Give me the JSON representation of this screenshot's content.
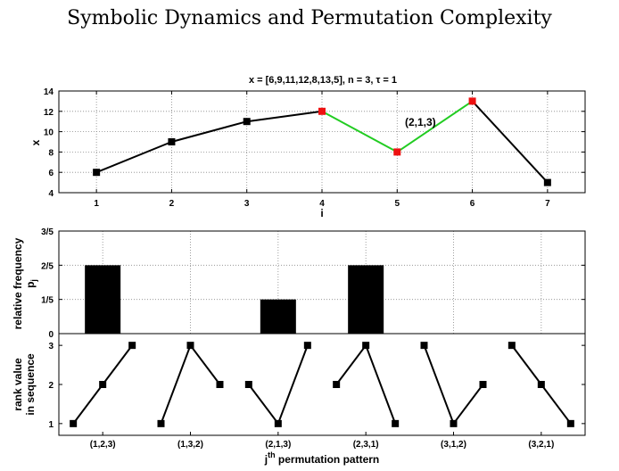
{
  "page": {
    "title": "Symbolic Dynamics and Permutation Complexity"
  },
  "chart_data": [
    {
      "type": "line",
      "title": "x = [6,9,11,12,8,13,5], n = 3, τ = 1",
      "xlabel": "i",
      "ylabel": "x",
      "x": [
        1,
        2,
        3,
        4,
        5,
        6,
        7
      ],
      "values": [
        6,
        9,
        11,
        12,
        8,
        13,
        5
      ],
      "xlim": [
        0.5,
        7.5
      ],
      "ylim": [
        4,
        14
      ],
      "xticks": [
        "1",
        "2",
        "3",
        "4",
        "5",
        "6",
        "7"
      ],
      "yticks": [
        "4",
        "6",
        "8",
        "10",
        "12",
        "14"
      ],
      "grid": true,
      "highlight": {
        "indices": [
          4,
          5,
          6
        ],
        "pattern_label": "(2,1,3)",
        "line_color": "#22cc22",
        "marker_color": "#ee1111"
      },
      "line_color": "#000000",
      "marker_color": "#000000"
    },
    {
      "type": "bar",
      "xlabel": "",
      "ylabel_line1": "relative frequency",
      "ylabel_line2": "p",
      "ylabel_sub": "j",
      "categories": [
        "(1,2,3)",
        "(1,3,2)",
        "(2,1,3)",
        "(2,3,1)",
        "(3,1,2)",
        "(3,2,1)"
      ],
      "values": [
        0.4,
        0,
        0.2,
        0.4,
        0,
        0
      ],
      "ylim": [
        0,
        0.6
      ],
      "yticks": [
        "0",
        "1/5",
        "2/5",
        "3/5"
      ],
      "grid": true,
      "bar_color": "#000000"
    },
    {
      "type": "line",
      "ylabel_line1": "rank value",
      "ylabel_line2": "in sequence",
      "xlabel_main": "j",
      "xlabel_sup": "th",
      "xlabel_rest": " permutation pattern",
      "categories": [
        "(1,2,3)",
        "(1,3,2)",
        "(2,1,3)",
        "(2,3,1)",
        "(3,1,2)",
        "(3,2,1)"
      ],
      "patterns": [
        [
          1,
          2,
          3
        ],
        [
          1,
          3,
          2
        ],
        [
          2,
          1,
          3
        ],
        [
          2,
          3,
          1
        ],
        [
          3,
          1,
          2
        ],
        [
          3,
          2,
          1
        ]
      ],
      "ylim": [
        0.7,
        3.3
      ],
      "yticks": [
        "1",
        "2",
        "3"
      ],
      "grid": false
    }
  ]
}
